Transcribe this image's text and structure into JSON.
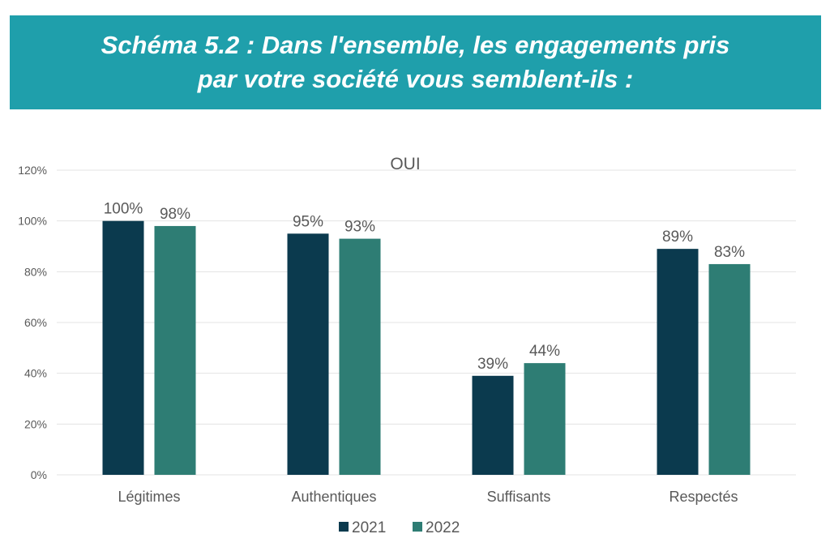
{
  "header": {
    "title_line1": "Schéma 5.2 : Dans l'ensemble, les engagements pris",
    "title_line2": "par votre société vous semblent-ils :"
  },
  "chart_data": {
    "type": "bar",
    "title": "OUI",
    "categories": [
      "Légitimes",
      "Authentiques",
      "Suffisants",
      "Respectés"
    ],
    "series": [
      {
        "name": "2021",
        "values": [
          100,
          95,
          39,
          89
        ],
        "color": "#0b3a4e"
      },
      {
        "name": "2022",
        "values": [
          98,
          93,
          44,
          83
        ],
        "color": "#2e7d74"
      }
    ],
    "data_labels": [
      [
        "100%",
        "95%",
        "39%",
        "89%"
      ],
      [
        "98%",
        "93%",
        "44%",
        "83%"
      ]
    ],
    "ylim": [
      0,
      120
    ],
    "yticks": [
      0,
      20,
      40,
      60,
      80,
      100,
      120
    ],
    "ytick_labels": [
      "0%",
      "20%",
      "40%",
      "60%",
      "80%",
      "100%",
      "120%"
    ],
    "xlabel": "",
    "ylabel": "",
    "grid": true,
    "legend_position": "bottom"
  },
  "colors": {
    "banner": "#1f9fab",
    "banner_text": "#ffffff",
    "grid": "#e3e3e3",
    "axis_text": "#595959"
  }
}
